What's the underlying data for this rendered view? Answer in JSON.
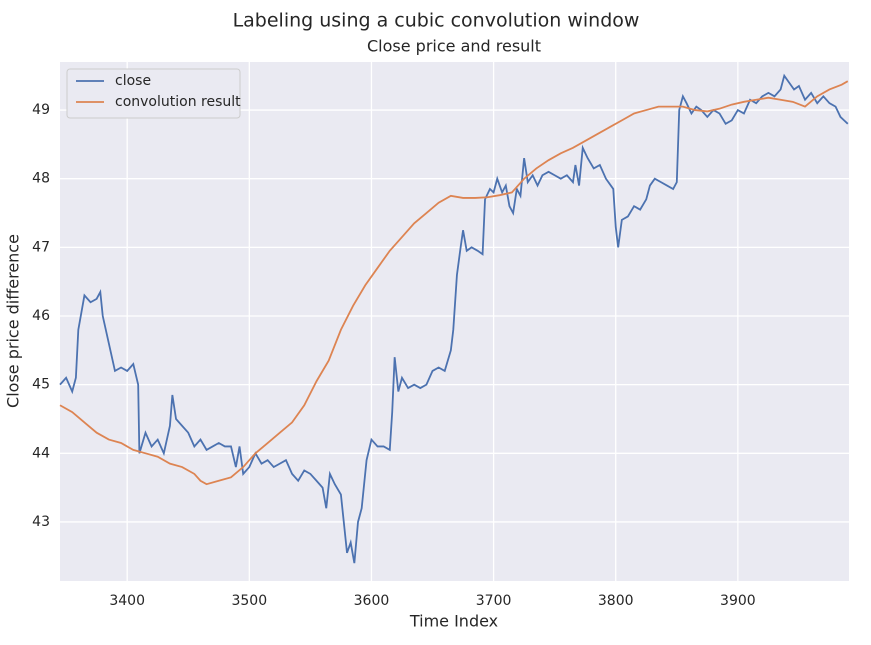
{
  "chart_data": {
    "type": "line",
    "title": "Labeling using a cubic convolution window",
    "subtitle": "Close price and result",
    "x_label": "Time Index",
    "y_label": "Close price difference",
    "xlim": [
      3345,
      3991
    ],
    "ylim": [
      42.14,
      49.7
    ],
    "xticks": [
      3400,
      3500,
      3600,
      3700,
      3800,
      3900
    ],
    "yticks": [
      43,
      44,
      45,
      46,
      47,
      48,
      49
    ],
    "grid": true,
    "legend": "upper left",
    "series": [
      {
        "name": "close",
        "color": "#4c72b0",
        "x": [
          3345,
          3350,
          3355,
          3358,
          3360,
          3365,
          3370,
          3375,
          3378,
          3380,
          3385,
          3390,
          3395,
          3400,
          3405,
          3409,
          3410,
          3415,
          3420,
          3425,
          3430,
          3435,
          3437,
          3440,
          3445,
          3450,
          3455,
          3460,
          3465,
          3470,
          3475,
          3480,
          3485,
          3489,
          3492,
          3495,
          3500,
          3505,
          3510,
          3515,
          3520,
          3525,
          3530,
          3535,
          3540,
          3545,
          3550,
          3555,
          3560,
          3563,
          3566,
          3570,
          3575,
          3580,
          3583,
          3586,
          3589,
          3592,
          3596,
          3600,
          3605,
          3610,
          3615,
          3617,
          3619,
          3622,
          3625,
          3630,
          3635,
          3640,
          3645,
          3650,
          3655,
          3660,
          3665,
          3667,
          3670,
          3673,
          3675,
          3678,
          3682,
          3687,
          3691,
          3693,
          3697,
          3700,
          3703,
          3707,
          3710,
          3713,
          3716,
          3719,
          3722,
          3725,
          3728,
          3732,
          3736,
          3740,
          3745,
          3750,
          3755,
          3760,
          3765,
          3767,
          3770,
          3773,
          3777,
          3782,
          3787,
          3792,
          3796,
          3798,
          3800,
          3802,
          3805,
          3810,
          3815,
          3820,
          3825,
          3828,
          3832,
          3837,
          3842,
          3847,
          3850,
          3852,
          3855,
          3858,
          3862,
          3866,
          3870,
          3875,
          3880,
          3885,
          3890,
          3895,
          3900,
          3905,
          3910,
          3915,
          3920,
          3925,
          3930,
          3935,
          3938,
          3942,
          3946,
          3950,
          3955,
          3960,
          3965,
          3970,
          3975,
          3980,
          3984,
          3987,
          3990
        ],
        "values": [
          45.0,
          45.1,
          44.9,
          45.1,
          45.8,
          46.3,
          46.2,
          46.25,
          46.35,
          46.0,
          45.6,
          45.2,
          45.25,
          45.2,
          45.3,
          45.0,
          44.0,
          44.3,
          44.1,
          44.2,
          44.0,
          44.4,
          44.85,
          44.5,
          44.4,
          44.3,
          44.1,
          44.2,
          44.05,
          44.1,
          44.15,
          44.1,
          44.1,
          43.8,
          44.1,
          43.7,
          43.8,
          44.0,
          43.85,
          43.9,
          43.8,
          43.85,
          43.9,
          43.7,
          43.6,
          43.75,
          43.7,
          43.6,
          43.5,
          43.2,
          43.7,
          43.55,
          43.4,
          42.55,
          42.7,
          42.4,
          43.0,
          43.2,
          43.9,
          44.2,
          44.1,
          44.1,
          44.05,
          44.6,
          45.4,
          44.9,
          45.1,
          44.95,
          45.0,
          44.95,
          45.0,
          45.2,
          45.25,
          45.2,
          45.5,
          45.8,
          46.6,
          47.0,
          47.25,
          46.95,
          47.0,
          46.95,
          46.9,
          47.7,
          47.85,
          47.8,
          48.0,
          47.8,
          47.9,
          47.6,
          47.5,
          47.85,
          47.75,
          48.3,
          47.95,
          48.05,
          47.9,
          48.05,
          48.1,
          48.05,
          48.0,
          48.05,
          47.95,
          48.2,
          47.9,
          48.45,
          48.3,
          48.15,
          48.2,
          48.0,
          47.9,
          47.85,
          47.3,
          47.0,
          47.4,
          47.45,
          47.6,
          47.55,
          47.7,
          47.9,
          48.0,
          47.95,
          47.9,
          47.85,
          47.95,
          49.0,
          49.2,
          49.1,
          48.95,
          49.05,
          49.0,
          48.9,
          49.0,
          48.95,
          48.8,
          48.85,
          49.0,
          48.95,
          49.15,
          49.1,
          49.2,
          49.25,
          49.2,
          49.3,
          49.5,
          49.4,
          49.3,
          49.35,
          49.15,
          49.25,
          49.1,
          49.2,
          49.1,
          49.05,
          48.9,
          48.85,
          48.8
        ]
      },
      {
        "name": "convolution result",
        "color": "#dd8452",
        "x": [
          3345,
          3355,
          3365,
          3375,
          3385,
          3395,
          3405,
          3415,
          3425,
          3435,
          3445,
          3455,
          3460,
          3465,
          3475,
          3485,
          3495,
          3505,
          3515,
          3525,
          3535,
          3545,
          3555,
          3565,
          3575,
          3585,
          3595,
          3605,
          3615,
          3625,
          3635,
          3645,
          3655,
          3665,
          3675,
          3685,
          3695,
          3705,
          3715,
          3725,
          3735,
          3745,
          3755,
          3765,
          3775,
          3785,
          3795,
          3805,
          3815,
          3825,
          3835,
          3845,
          3855,
          3865,
          3875,
          3885,
          3895,
          3905,
          3915,
          3925,
          3935,
          3945,
          3955,
          3965,
          3975,
          3985,
          3990
        ],
        "values": [
          44.7,
          44.6,
          44.45,
          44.3,
          44.2,
          44.15,
          44.05,
          44.0,
          43.95,
          43.85,
          43.8,
          43.7,
          43.6,
          43.55,
          43.6,
          43.65,
          43.8,
          44.0,
          44.15,
          44.3,
          44.45,
          44.7,
          45.05,
          45.35,
          45.8,
          46.15,
          46.45,
          46.7,
          46.95,
          47.15,
          47.35,
          47.5,
          47.65,
          47.75,
          47.72,
          47.72,
          47.73,
          47.76,
          47.8,
          48.0,
          48.15,
          48.27,
          48.37,
          48.45,
          48.55,
          48.65,
          48.75,
          48.85,
          48.95,
          49.0,
          49.05,
          49.05,
          49.05,
          49.0,
          48.98,
          49.02,
          49.08,
          49.12,
          49.15,
          49.18,
          49.15,
          49.12,
          49.05,
          49.2,
          49.3,
          49.37,
          49.42
        ]
      }
    ]
  }
}
